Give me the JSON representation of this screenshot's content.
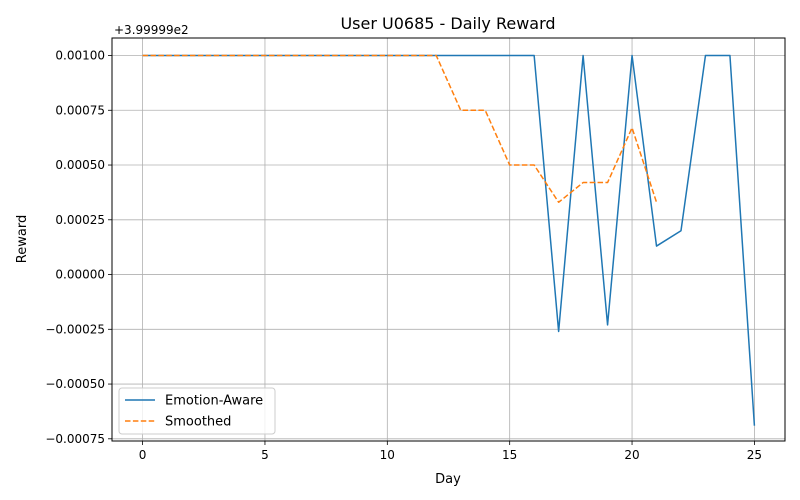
{
  "chart_data": {
    "type": "line",
    "title": "User U0685 - Daily Reward",
    "xlabel": "Day",
    "ylabel": "Reward",
    "offset_label": "+3.99999e2",
    "xlim": [
      -1.25,
      26.25
    ],
    "ylim": [
      -0.00076,
      0.00108
    ],
    "xticks": [
      0,
      5,
      10,
      15,
      20,
      25
    ],
    "yticks": [
      -0.00075,
      -0.0005,
      -0.00025,
      0,
      0.00025,
      0.0005,
      0.00075,
      0.001
    ],
    "ytick_labels": [
      "−0.00075",
      "−0.00050",
      "−0.00025",
      "0.00000",
      "0.00025",
      "0.00050",
      "0.00075",
      "0.00100"
    ],
    "grid": true,
    "legend_position": "lower-left",
    "series": [
      {
        "name": "Emotion-Aware",
        "color": "#1f77b4",
        "style": "solid",
        "x": [
          0,
          1,
          2,
          3,
          4,
          5,
          6,
          7,
          8,
          9,
          10,
          11,
          12,
          13,
          14,
          15,
          16,
          17,
          18,
          19,
          20,
          21,
          22,
          23,
          24,
          25
        ],
        "values": [
          0.001,
          0.001,
          0.001,
          0.001,
          0.001,
          0.001,
          0.001,
          0.001,
          0.001,
          0.001,
          0.001,
          0.001,
          0.001,
          0.001,
          0.001,
          0.001,
          0.001,
          -0.00026,
          0.001,
          -0.00023,
          0.001,
          0.00013,
          0.0002,
          0.001,
          0.001,
          -0.00069
        ]
      },
      {
        "name": "Smoothed",
        "color": "#ff7f0e",
        "style": "dashed",
        "x": [
          0,
          1,
          2,
          3,
          4,
          5,
          6,
          7,
          8,
          9,
          10,
          11,
          12,
          13,
          14,
          15,
          16,
          17,
          18,
          19,
          20,
          21
        ],
        "values": [
          0.001,
          0.001,
          0.001,
          0.001,
          0.001,
          0.001,
          0.001,
          0.001,
          0.001,
          0.001,
          0.001,
          0.001,
          0.001,
          0.00075,
          0.00075,
          0.0005,
          0.0005,
          0.00033,
          0.00042,
          0.00042,
          0.00067,
          0.00033
        ]
      }
    ]
  }
}
